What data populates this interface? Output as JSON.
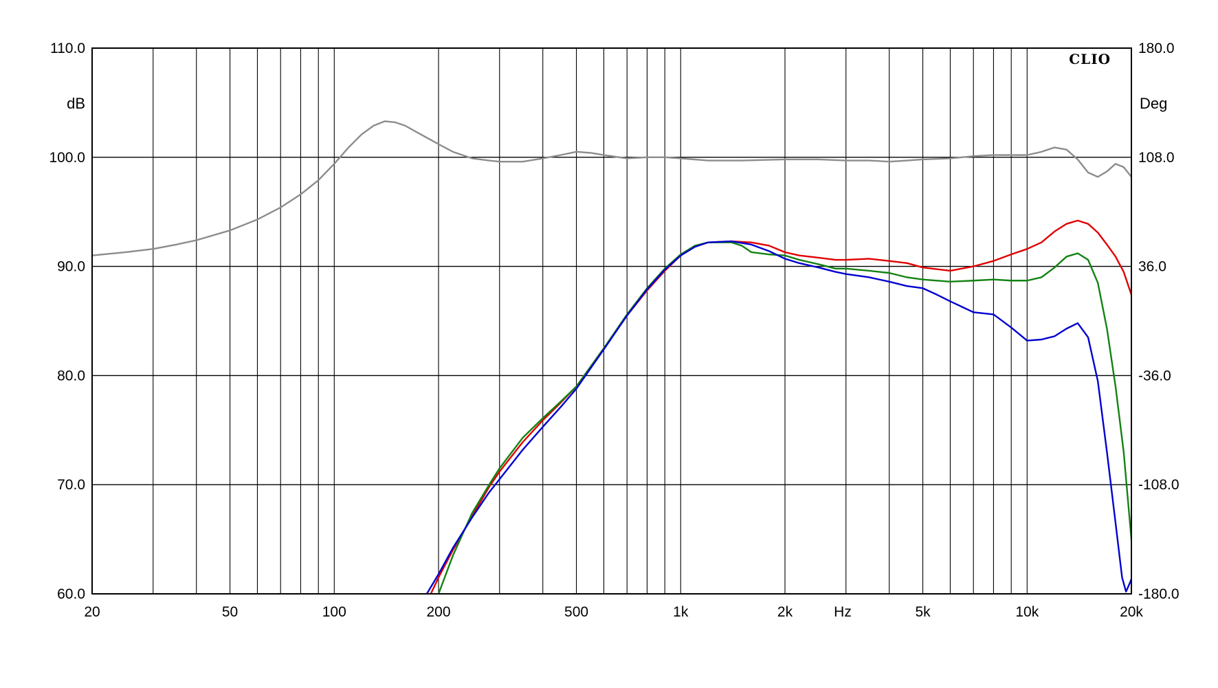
{
  "chart_data": {
    "type": "line",
    "brand": "CLIO",
    "left_unit": "dB",
    "right_unit": "Deg",
    "x_unit": "Hz",
    "x_scale": "log",
    "xlim": [
      20,
      20000
    ],
    "ylim": [
      60,
      110
    ],
    "y2lim": [
      -180,
      180
    ],
    "grid": true,
    "x_ticks": [
      {
        "value": 20,
        "label": "20"
      },
      {
        "value": 50,
        "label": "50"
      },
      {
        "value": 100,
        "label": "100"
      },
      {
        "value": 200,
        "label": "200"
      },
      {
        "value": 500,
        "label": "500"
      },
      {
        "value": 1000,
        "label": "1k"
      },
      {
        "value": 2000,
        "label": "2k"
      },
      {
        "value": 5000,
        "label": "5k"
      },
      {
        "value": 10000,
        "label": "10k"
      },
      {
        "value": 20000,
        "label": "20k"
      }
    ],
    "x_gridlines": [
      20,
      30,
      40,
      50,
      60,
      70,
      80,
      90,
      100,
      200,
      300,
      400,
      500,
      600,
      700,
      800,
      900,
      1000,
      2000,
      3000,
      4000,
      5000,
      6000,
      7000,
      8000,
      9000,
      10000,
      20000
    ],
    "y_ticks": [
      {
        "value": 110,
        "label": "110.0"
      },
      {
        "value": 100,
        "label": "100.0"
      },
      {
        "value": 90,
        "label": "90.0"
      },
      {
        "value": 80,
        "label": "80.0"
      },
      {
        "value": 70,
        "label": "70.0"
      },
      {
        "value": 60,
        "label": "60.0"
      }
    ],
    "y2_ticks": [
      {
        "value": 180,
        "label": "180.0"
      },
      {
        "value": 108,
        "label": "108.0"
      },
      {
        "value": 36,
        "label": "36.0"
      },
      {
        "value": -36,
        "label": "-36.0"
      },
      {
        "value": -108,
        "label": "-108.0"
      },
      {
        "value": -180,
        "label": "-180.0"
      }
    ],
    "series": [
      {
        "color": "#8c8c8c",
        "points": [
          [
            20,
            91.0
          ],
          [
            25,
            91.3
          ],
          [
            30,
            91.6
          ],
          [
            35,
            92.0
          ],
          [
            40,
            92.4
          ],
          [
            50,
            93.3
          ],
          [
            60,
            94.3
          ],
          [
            70,
            95.4
          ],
          [
            80,
            96.6
          ],
          [
            90,
            97.9
          ],
          [
            100,
            99.4
          ],
          [
            110,
            100.9
          ],
          [
            120,
            102.1
          ],
          [
            130,
            102.9
          ],
          [
            140,
            103.3
          ],
          [
            150,
            103.2
          ],
          [
            160,
            102.9
          ],
          [
            180,
            102.0
          ],
          [
            200,
            101.2
          ],
          [
            220,
            100.5
          ],
          [
            250,
            99.9
          ],
          [
            280,
            99.7
          ],
          [
            300,
            99.6
          ],
          [
            350,
            99.6
          ],
          [
            400,
            99.9
          ],
          [
            450,
            100.2
          ],
          [
            500,
            100.5
          ],
          [
            550,
            100.4
          ],
          [
            600,
            100.2
          ],
          [
            700,
            99.9
          ],
          [
            800,
            100.0
          ],
          [
            900,
            100.0
          ],
          [
            1000,
            99.9
          ],
          [
            1200,
            99.7
          ],
          [
            1500,
            99.7
          ],
          [
            2000,
            99.8
          ],
          [
            2500,
            99.8
          ],
          [
            3000,
            99.7
          ],
          [
            3500,
            99.7
          ],
          [
            4000,
            99.6
          ],
          [
            4500,
            99.7
          ],
          [
            5000,
            99.8
          ],
          [
            6000,
            99.9
          ],
          [
            7000,
            100.1
          ],
          [
            8000,
            100.2
          ],
          [
            9000,
            100.2
          ],
          [
            10000,
            100.2
          ],
          [
            11000,
            100.5
          ],
          [
            12000,
            100.9
          ],
          [
            13000,
            100.7
          ],
          [
            14000,
            99.8
          ],
          [
            15000,
            98.6
          ],
          [
            16000,
            98.2
          ],
          [
            17000,
            98.7
          ],
          [
            18000,
            99.4
          ],
          [
            19000,
            99.1
          ],
          [
            20000,
            98.2
          ],
          [
            20500,
            97.5
          ]
        ]
      },
      {
        "color": "#e00000",
        "points": [
          [
            190,
            60.0
          ],
          [
            200,
            61.5
          ],
          [
            220,
            64.0
          ],
          [
            250,
            67.1
          ],
          [
            280,
            69.8
          ],
          [
            300,
            71.2
          ],
          [
            350,
            73.9
          ],
          [
            400,
            75.9
          ],
          [
            450,
            77.5
          ],
          [
            500,
            79.0
          ],
          [
            600,
            82.5
          ],
          [
            700,
            85.5
          ],
          [
            800,
            87.8
          ],
          [
            900,
            89.6
          ],
          [
            1000,
            91.0
          ],
          [
            1100,
            91.8
          ],
          [
            1200,
            92.2
          ],
          [
            1400,
            92.3
          ],
          [
            1600,
            92.2
          ],
          [
            1800,
            91.9
          ],
          [
            2000,
            91.3
          ],
          [
            2200,
            91.0
          ],
          [
            2500,
            90.8
          ],
          [
            2800,
            90.6
          ],
          [
            3000,
            90.6
          ],
          [
            3500,
            90.7
          ],
          [
            4000,
            90.5
          ],
          [
            4500,
            90.3
          ],
          [
            5000,
            89.9
          ],
          [
            6000,
            89.6
          ],
          [
            7000,
            90.0
          ],
          [
            8000,
            90.5
          ],
          [
            9000,
            91.1
          ],
          [
            10000,
            91.6
          ],
          [
            11000,
            92.2
          ],
          [
            12000,
            93.2
          ],
          [
            13000,
            93.9
          ],
          [
            14000,
            94.2
          ],
          [
            15000,
            93.9
          ],
          [
            16000,
            93.1
          ],
          [
            17000,
            92.0
          ],
          [
            18000,
            90.9
          ],
          [
            19000,
            89.5
          ],
          [
            20000,
            87.4
          ],
          [
            20500,
            86.0
          ]
        ]
      },
      {
        "color": "#128212",
        "points": [
          [
            200,
            60.0
          ],
          [
            220,
            63.5
          ],
          [
            250,
            67.4
          ],
          [
            280,
            70.0
          ],
          [
            300,
            71.5
          ],
          [
            350,
            74.3
          ],
          [
            400,
            76.1
          ],
          [
            450,
            77.6
          ],
          [
            500,
            79.0
          ],
          [
            600,
            82.5
          ],
          [
            700,
            85.6
          ],
          [
            800,
            88.0
          ],
          [
            900,
            89.8
          ],
          [
            1000,
            91.1
          ],
          [
            1100,
            91.9
          ],
          [
            1200,
            92.2
          ],
          [
            1400,
            92.2
          ],
          [
            1500,
            91.9
          ],
          [
            1600,
            91.3
          ],
          [
            1800,
            91.1
          ],
          [
            2000,
            91.0
          ],
          [
            2200,
            90.6
          ],
          [
            2500,
            90.2
          ],
          [
            2800,
            89.8
          ],
          [
            3000,
            89.8
          ],
          [
            3500,
            89.6
          ],
          [
            4000,
            89.4
          ],
          [
            4500,
            89.0
          ],
          [
            5000,
            88.8
          ],
          [
            6000,
            88.6
          ],
          [
            7000,
            88.7
          ],
          [
            8000,
            88.8
          ],
          [
            9000,
            88.7
          ],
          [
            10000,
            88.7
          ],
          [
            11000,
            89.0
          ],
          [
            12000,
            89.9
          ],
          [
            13000,
            90.9
          ],
          [
            14000,
            91.2
          ],
          [
            15000,
            90.6
          ],
          [
            16000,
            88.5
          ],
          [
            17000,
            84.3
          ],
          [
            18000,
            79.0
          ],
          [
            19000,
            73.0
          ],
          [
            20000,
            65.0
          ],
          [
            20500,
            62.0
          ]
        ]
      },
      {
        "color": "#0000d0",
        "points": [
          [
            185,
            60.0
          ],
          [
            200,
            61.8
          ],
          [
            220,
            64.2
          ],
          [
            250,
            67.0
          ],
          [
            280,
            69.3
          ],
          [
            300,
            70.5
          ],
          [
            350,
            73.2
          ],
          [
            400,
            75.3
          ],
          [
            450,
            77.1
          ],
          [
            500,
            78.8
          ],
          [
            600,
            82.4
          ],
          [
            700,
            85.5
          ],
          [
            800,
            87.9
          ],
          [
            900,
            89.7
          ],
          [
            1000,
            91.0
          ],
          [
            1100,
            91.8
          ],
          [
            1200,
            92.2
          ],
          [
            1400,
            92.3
          ],
          [
            1600,
            92.0
          ],
          [
            1800,
            91.4
          ],
          [
            2000,
            90.7
          ],
          [
            2200,
            90.3
          ],
          [
            2500,
            89.9
          ],
          [
            2800,
            89.5
          ],
          [
            3000,
            89.3
          ],
          [
            3500,
            89.0
          ],
          [
            4000,
            88.6
          ],
          [
            4500,
            88.2
          ],
          [
            5000,
            88.0
          ],
          [
            5500,
            87.4
          ],
          [
            6000,
            86.8
          ],
          [
            7000,
            85.8
          ],
          [
            8000,
            85.6
          ],
          [
            9000,
            84.4
          ],
          [
            10000,
            83.2
          ],
          [
            11000,
            83.3
          ],
          [
            12000,
            83.6
          ],
          [
            13000,
            84.3
          ],
          [
            14000,
            84.8
          ],
          [
            15000,
            83.5
          ],
          [
            16000,
            79.5
          ],
          [
            17000,
            73.0
          ],
          [
            18000,
            66.5
          ],
          [
            18800,
            61.5
          ],
          [
            19300,
            60.2
          ],
          [
            19800,
            61.0
          ],
          [
            20200,
            61.7
          ],
          [
            20500,
            61.5
          ]
        ]
      }
    ]
  }
}
